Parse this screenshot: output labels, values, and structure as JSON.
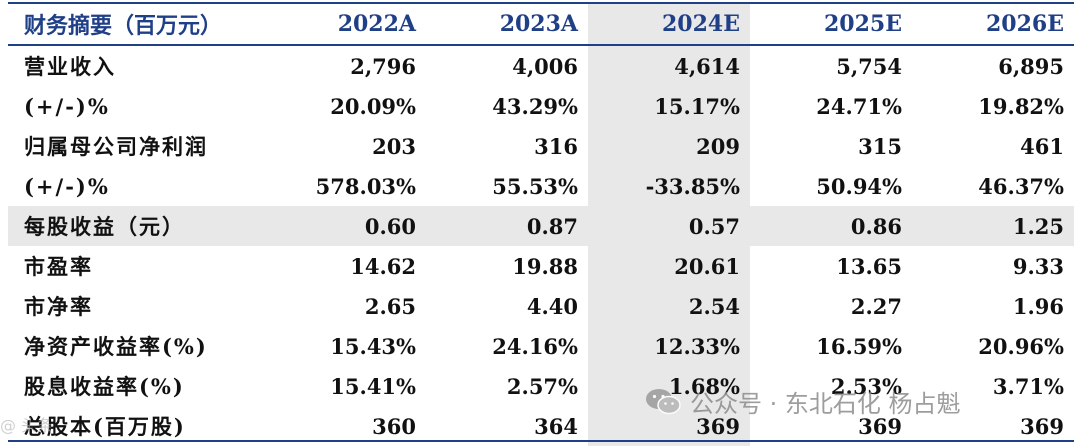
{
  "colors": {
    "header_text": "#1f3f86",
    "rule": "#1f3f86",
    "highlight": "#e8e8e8",
    "watermark": "#8c8c8c"
  },
  "table": {
    "header": [
      "财务摘要（百万元）",
      "2022A",
      "2023A",
      "2024E",
      "2025E",
      "2026E"
    ],
    "highlight_column_index": 3,
    "rows": [
      {
        "label": "营业收入",
        "values": [
          "2,796",
          "4,006",
          "4,614",
          "5,754",
          "6,895"
        ],
        "shaded": false
      },
      {
        "label": "(+/-)%",
        "values": [
          "20.09%",
          "43.29%",
          "15.17%",
          "24.71%",
          "19.82%"
        ],
        "shaded": false
      },
      {
        "label": "归属母公司净利润",
        "values": [
          "203",
          "316",
          "209",
          "315",
          "461"
        ],
        "shaded": false
      },
      {
        "label": "(+/-)%",
        "values": [
          "578.03%",
          "55.53%",
          "-33.85%",
          "50.94%",
          "46.37%"
        ],
        "shaded": false
      },
      {
        "label": "每股收益（元）",
        "values": [
          "0.60",
          "0.87",
          "0.57",
          "0.86",
          "1.25"
        ],
        "shaded": true
      },
      {
        "label": "市盈率",
        "values": [
          "14.62",
          "19.88",
          "20.61",
          "13.65",
          "9.33"
        ],
        "shaded": false
      },
      {
        "label": "市净率",
        "values": [
          "2.65",
          "4.40",
          "2.54",
          "2.27",
          "1.96"
        ],
        "shaded": false
      },
      {
        "label": "净资产收益率(%)",
        "values": [
          "15.43%",
          "24.16%",
          "12.33%",
          "16.59%",
          "20.96%"
        ],
        "shaded": false
      },
      {
        "label": "股息收益率(%)",
        "values": [
          "15.41%",
          "2.57%",
          "1.68%",
          "2.53%",
          "3.71%"
        ],
        "shaded": false
      },
      {
        "label": "总股本(百万股)",
        "values": [
          "360",
          "364",
          "369",
          "369",
          "369"
        ],
        "shaded": false
      }
    ]
  },
  "watermark": {
    "icon": "wechat-icon",
    "text": "公众号 · 东北石化 杨占魁"
  },
  "corner_mark": "@ 头条"
}
